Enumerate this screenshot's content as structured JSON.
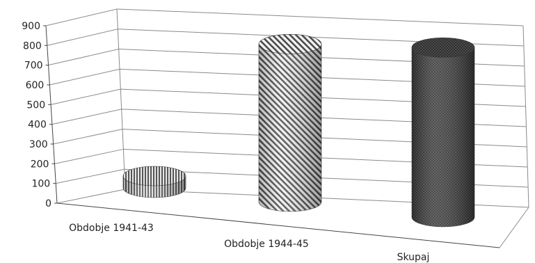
{
  "chart_data": {
    "type": "bar",
    "style": "3d-cylinder",
    "categories": [
      "Obdobje 1941-43",
      "Obdobje 1944-45",
      "Skupaj"
    ],
    "values": [
      60,
      800,
      860
    ],
    "ylim": [
      0,
      900
    ],
    "yticks": [
      "0",
      "100",
      "200",
      "300",
      "400",
      "500",
      "600",
      "700",
      "800",
      "900"
    ],
    "grid": true,
    "legend": "none",
    "bar_fills": [
      "vertical-stripes",
      "diagonal-stripes",
      "dark-crosshatch"
    ],
    "colors": {
      "stripe": "#555555",
      "dark": "#333333",
      "grid": "#8a8a8a"
    }
  }
}
